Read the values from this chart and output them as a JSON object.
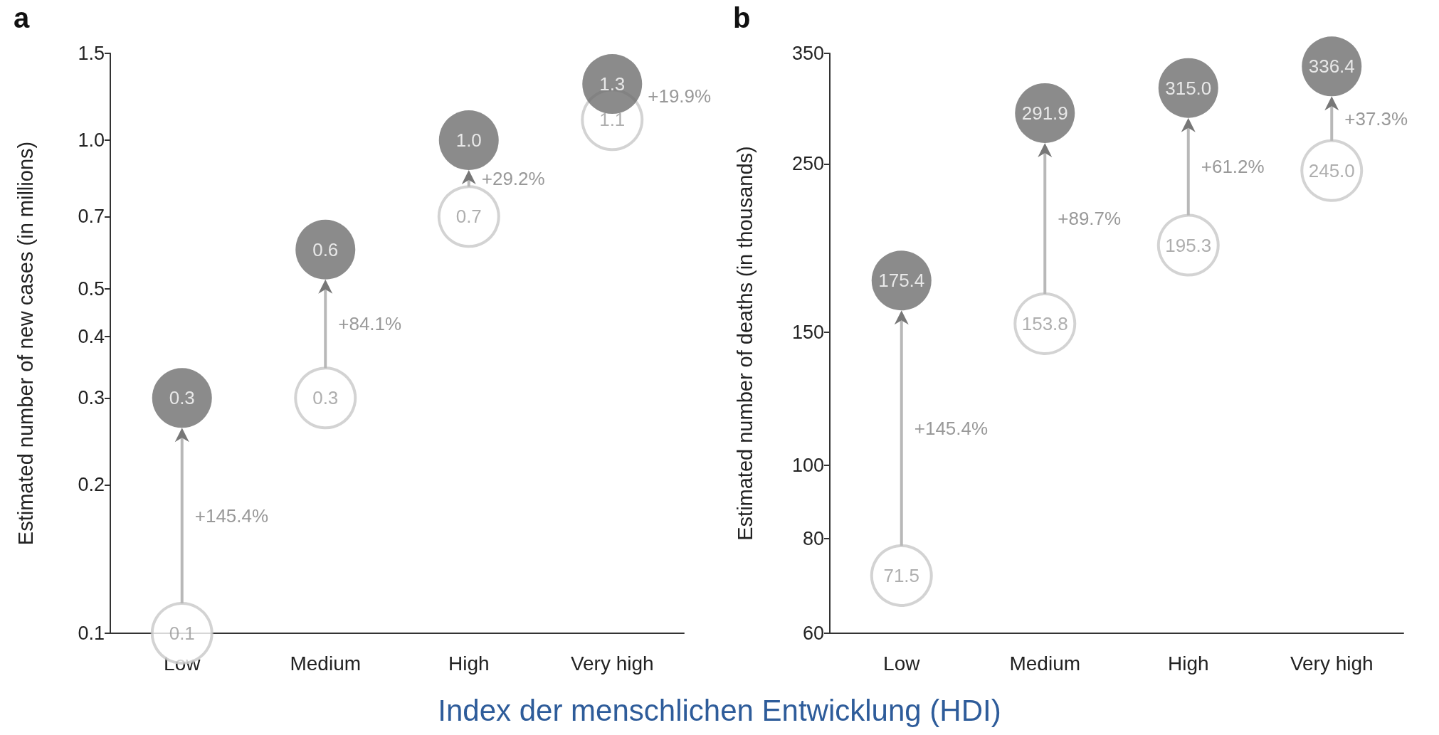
{
  "chart_data": [
    {
      "type": "scatter",
      "title": "a",
      "ylabel": "Estimated number of new cases (in millions)",
      "xlabel": "Index der menschlichen Entwicklung (HDI)",
      "categories": [
        "Low",
        "Medium",
        "High",
        "Very high"
      ],
      "log": "y",
      "ylim": [
        0.1,
        1.5
      ],
      "yticks": [
        0.1,
        0.2,
        0.3,
        0.4,
        0.5,
        0.7,
        {
          "value": 1.0,
          "label": "1.0"
        },
        1.5
      ],
      "grid": false,
      "marker": "circle",
      "data_labels": true,
      "series": [
        {
          "color": "#c8c8c8",
          "values": [
            0.1,
            0.3,
            0.7,
            1.1
          ]
        },
        {
          "color": "#6e6e6e",
          "values": [
            0.3,
            0.6,
            1.0,
            1.3
          ],
          "value_labels": [
            "0.3",
            "0.6",
            "1.0",
            "1.3"
          ]
        }
      ],
      "annotations": [
        "+145.4%",
        "+84.1%",
        "+29.2%",
        "+19.9%"
      ]
    },
    {
      "type": "scatter",
      "title": "b",
      "ylabel": "Estimated number of deaths (in thousands)",
      "categories": [
        "Low",
        "Medium",
        "High",
        "Very high"
      ],
      "log": "y",
      "ylim": [
        60,
        350
      ],
      "yticks": [
        60,
        80,
        100,
        150,
        250,
        350
      ],
      "grid": false,
      "marker": "circle",
      "data_labels": true,
      "series": [
        {
          "color": "#c8c8c8",
          "values": [
            71.5,
            153.8,
            195.3,
            245.0
          ],
          "value_labels": [
            "71.5",
            "153.8",
            "195.3",
            "245.0"
          ]
        },
        {
          "color": "#6e6e6e",
          "values": [
            175.4,
            291.9,
            315.0,
            336.4
          ],
          "value_labels": [
            "175.4",
            "291.9",
            "315.0",
            "336.4"
          ]
        }
      ],
      "annotations": [
        "+145.4%",
        "+89.7%",
        "+61.2%",
        "+37.3%"
      ]
    }
  ]
}
